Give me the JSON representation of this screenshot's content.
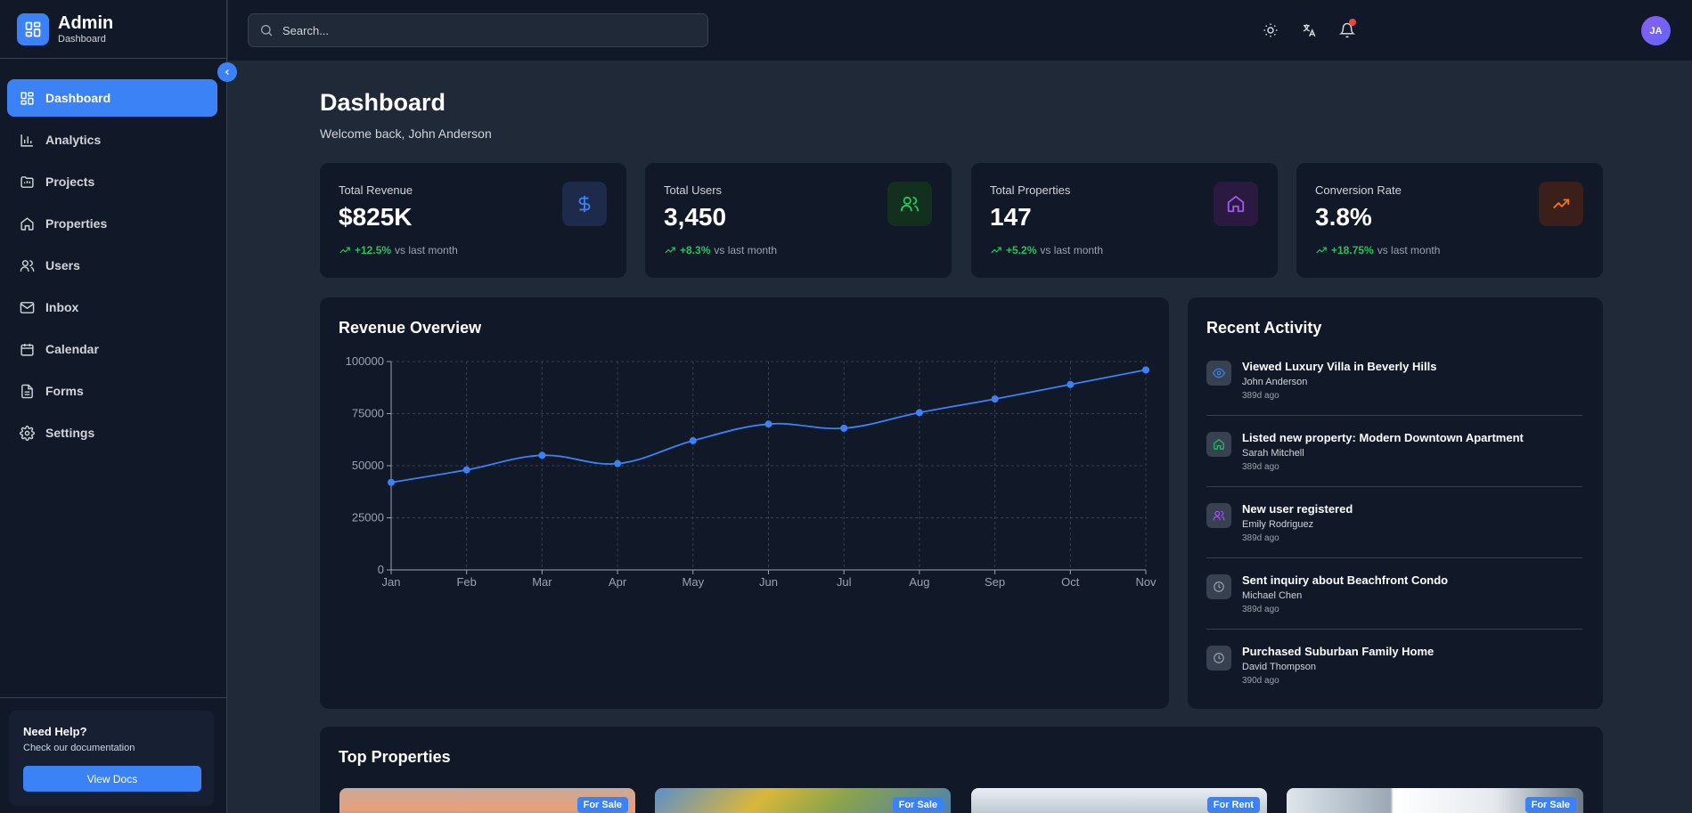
{
  "brand": {
    "title": "Admin",
    "subtitle": "Dashboard"
  },
  "nav": {
    "items": [
      {
        "label": "Dashboard",
        "icon": "dashboard-icon",
        "active": true
      },
      {
        "label": "Analytics",
        "icon": "bar-chart-icon"
      },
      {
        "label": "Projects",
        "icon": "folder-icon"
      },
      {
        "label": "Properties",
        "icon": "home-icon"
      },
      {
        "label": "Users",
        "icon": "users-icon"
      },
      {
        "label": "Inbox",
        "icon": "mail-icon"
      },
      {
        "label": "Calendar",
        "icon": "calendar-icon"
      },
      {
        "label": "Forms",
        "icon": "file-icon"
      },
      {
        "label": "Settings",
        "icon": "gear-icon"
      }
    ]
  },
  "help": {
    "title": "Need Help?",
    "text": "Check our documentation",
    "button": "View Docs"
  },
  "search": {
    "placeholder": "Search..."
  },
  "user": {
    "initials": "JA"
  },
  "page": {
    "title": "Dashboard",
    "subtitle": "Welcome back, John Anderson"
  },
  "stats": [
    {
      "label": "Total Revenue",
      "value": "$825K",
      "change": "+12.5%",
      "suffix": "vs last month",
      "icon": "dollar-icon",
      "color": "#3b82f6"
    },
    {
      "label": "Total Users",
      "value": "3,450",
      "change": "+8.3%",
      "suffix": "vs last month",
      "icon": "users-icon",
      "color": "#22c55e"
    },
    {
      "label": "Total Properties",
      "value": "147",
      "change": "+5.2%",
      "suffix": "vs last month",
      "icon": "home-icon",
      "color": "#a855f7"
    },
    {
      "label": "Conversion Rate",
      "value": "3.8%",
      "change": "+18.75%",
      "suffix": "vs last month",
      "icon": "trending-up-icon",
      "color": "#f97316"
    }
  ],
  "revenue": {
    "title": "Revenue Overview"
  },
  "chart_data": {
    "type": "line",
    "title": "Revenue Overview",
    "categories": [
      "Jan",
      "Feb",
      "Mar",
      "Apr",
      "May",
      "Jun",
      "Jul",
      "Aug",
      "Sep",
      "Oct",
      "Nov"
    ],
    "series": [
      {
        "values": [
          42000,
          48000,
          55000,
          51000,
          62000,
          70000,
          68000,
          75500,
          82000,
          89000,
          96000
        ]
      }
    ],
    "ylim": [
      0,
      100000
    ],
    "yticks": [
      0,
      25000,
      50000,
      75000,
      100000
    ],
    "ytick_labels": [
      "0",
      "25000",
      "50000",
      "75000",
      "100000"
    ],
    "grid": true,
    "color": "#3b82f6"
  },
  "activity": {
    "title": "Recent Activity",
    "items": [
      {
        "title": "Viewed Luxury Villa in Beverly Hills",
        "user": "John Anderson",
        "time": "389d ago",
        "icon": "eye-icon",
        "color": "#3b82f6"
      },
      {
        "title": "Listed new property: Modern Downtown Apartment",
        "user": "Sarah Mitchell",
        "time": "389d ago",
        "icon": "home-icon",
        "color": "#22c55e"
      },
      {
        "title": "New user registered",
        "user": "Emily Rodriguez",
        "time": "389d ago",
        "icon": "users-icon",
        "color": "#a855f7"
      },
      {
        "title": "Sent inquiry about Beachfront Condo",
        "user": "Michael Chen",
        "time": "389d ago",
        "icon": "clock-icon",
        "color": "#9ca3af"
      },
      {
        "title": "Purchased Suburban Family Home",
        "user": "David Thompson",
        "time": "390d ago",
        "icon": "clock-icon",
        "color": "#9ca3af"
      }
    ]
  },
  "properties": {
    "title": "Top Properties",
    "cards": [
      {
        "badge": "For Sale"
      },
      {
        "badge": "For Sale"
      },
      {
        "badge": "For Rent"
      },
      {
        "badge": "For Sale"
      }
    ]
  }
}
